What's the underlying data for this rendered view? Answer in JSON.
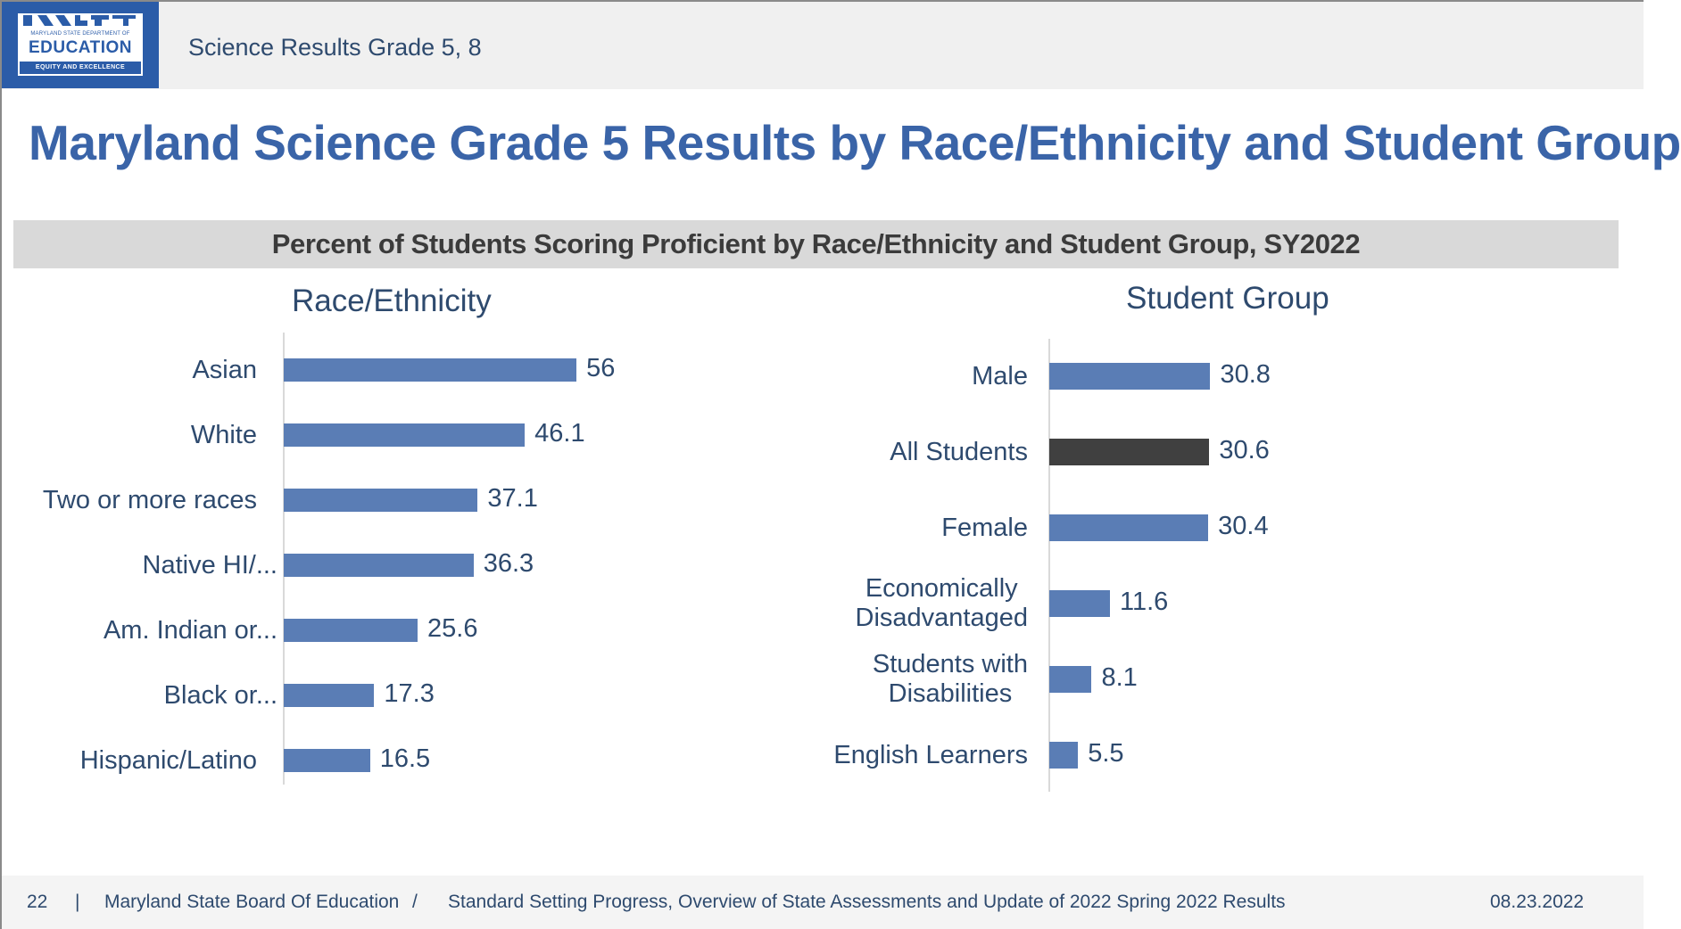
{
  "header": {
    "logo": {
      "line1": "MARYLAND STATE DEPARTMENT OF",
      "line2": "EDUCATION",
      "tagline": "EQUITY AND EXCELLENCE"
    },
    "title": "Science Results Grade 5, 8"
  },
  "page_title": "Maryland Science Grade 5 Results by Race/Ethnicity and Student Group",
  "colors": {
    "bar_default": "#5a7db5",
    "bar_highlight": "#404040",
    "title": "#3a64a8",
    "text": "#2e4a6e"
  },
  "chart_data": [
    {
      "type": "bar",
      "orientation": "horizontal",
      "title": "Percent of Students Scoring Proficient by Race/Ethnicity and Student Group, SY2022",
      "subtitle": "Race/Ethnicity",
      "xlabel": "",
      "ylabel": "",
      "xlim": [
        0,
        60
      ],
      "grid": false,
      "categories": [
        "Asian",
        "White",
        "Two or more races",
        "Native HI/...",
        "Am. Indian or...",
        "Black or...",
        "Hispanic/Latino"
      ],
      "values": [
        56,
        46.1,
        37.1,
        36.3,
        25.6,
        17.3,
        16.5
      ],
      "value_labels": [
        "56",
        "46.1",
        "37.1",
        "36.3",
        "25.6",
        "17.3",
        "16.5"
      ]
    },
    {
      "type": "bar",
      "orientation": "horizontal",
      "title": "Percent of Students Scoring Proficient by Race/Ethnicity and Student Group, SY2022",
      "subtitle": "Student Group",
      "xlabel": "",
      "ylabel": "",
      "xlim": [
        0,
        60
      ],
      "grid": false,
      "categories": [
        "Male",
        "All Students",
        "Female",
        "Economically Disadvantaged",
        "Students with Disabilities",
        "English Learners"
      ],
      "category_lines": [
        [
          "Male"
        ],
        [
          "All Students"
        ],
        [
          "Female"
        ],
        [
          "Economically",
          "Disadvantaged"
        ],
        [
          "Students with",
          "Disabilities"
        ],
        [
          "English Learners"
        ]
      ],
      "values": [
        30.8,
        30.6,
        30.4,
        11.6,
        8.1,
        5.5
      ],
      "value_labels": [
        "30.8",
        "30.6",
        "30.4",
        "11.6",
        "8.1",
        "5.5"
      ],
      "highlight_category": "All Students"
    }
  ],
  "footer": {
    "page_number": "22",
    "separator": "|",
    "organization": "Maryland State Board Of Education",
    "slash": "/",
    "presentation": "Standard Setting Progress, Overview of State Assessments and Update of 2022 Spring 2022 Results",
    "date": "08.23.2022"
  }
}
